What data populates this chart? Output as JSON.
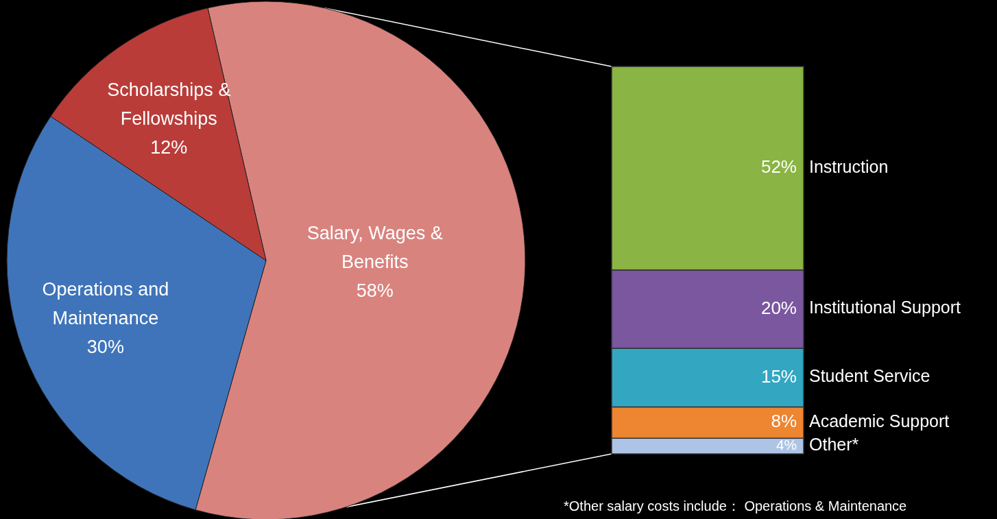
{
  "chart_data": [
    {
      "type": "pie",
      "categories": [
        "Salary, Wages & Benefits",
        "Operations and Maintenance",
        "Scholarships & Fellowships"
      ],
      "values": [
        58,
        30,
        12
      ],
      "colors": [
        "#d9837e",
        "#3f74ba",
        "#b93c39"
      ],
      "value_labels": [
        "58%",
        "30%",
        "12%"
      ]
    },
    {
      "type": "bar",
      "stacked": true,
      "categories": [
        null
      ],
      "series": [
        {
          "name": "Other*",
          "color": "#aec4e6",
          "values": [
            4
          ],
          "value_labels": [
            "4%"
          ]
        },
        {
          "name": "Academic Support",
          "color": "#ee8530",
          "values": [
            8
          ],
          "value_labels": [
            "8%"
          ]
        },
        {
          "name": "Student Service",
          "color": "#33a6c2",
          "values": [
            15
          ],
          "value_labels": [
            "15%"
          ]
        },
        {
          "name": "Institutional Support",
          "color": "#7a579e",
          "values": [
            20
          ],
          "value_labels": [
            "20%"
          ]
        },
        {
          "name": "Instruction",
          "color": "#8ab443",
          "values": [
            52
          ],
          "value_labels": [
            "52%"
          ]
        }
      ],
      "annotations": [
        "*Other salary costs include： Operations & Maintenance"
      ]
    }
  ]
}
